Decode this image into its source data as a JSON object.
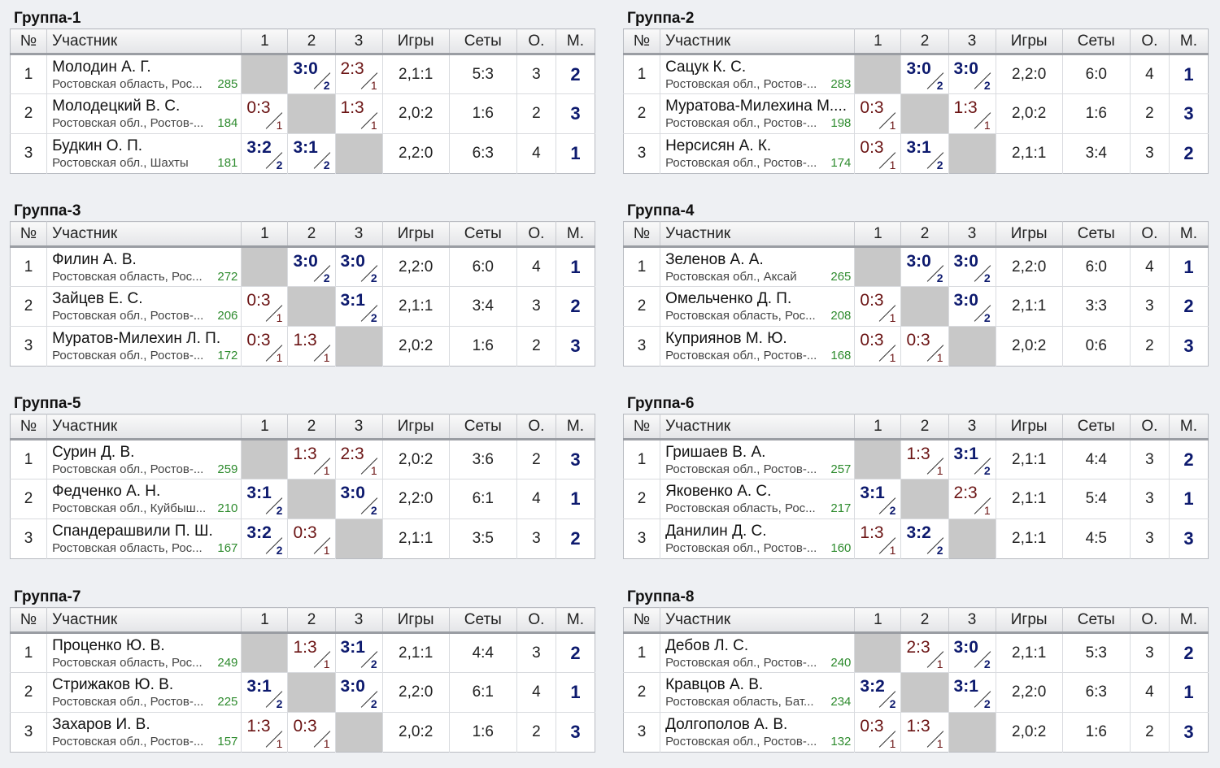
{
  "columns": {
    "num": "№",
    "name": "Участник",
    "c1": "1",
    "c2": "2",
    "c3": "3",
    "games": "Игры",
    "sets": "Сеты",
    "points": "О.",
    "place": "М."
  },
  "colors": {
    "win": "#0d1a6e",
    "loss": "#6b1414",
    "rating": "#2e8b2e",
    "self_cell": "#c8c8c8"
  },
  "groups": [
    {
      "title": "Группа-1",
      "rows": [
        {
          "num": "1",
          "name": "Молодин А. Г.",
          "region": "Ростовская область, Рос...",
          "rating": "285",
          "results": [
            null,
            {
              "score": "3:0",
              "pts": "2",
              "win": true
            },
            {
              "score": "2:3",
              "pts": "1",
              "win": false
            }
          ],
          "games": "2,1:1",
          "sets": "5:3",
          "points": "3",
          "place": "2"
        },
        {
          "num": "2",
          "name": "Молодецкий В. С.",
          "region": "Ростовская обл., Ростов-...",
          "rating": "184",
          "results": [
            {
              "score": "0:3",
              "pts": "1",
              "win": false
            },
            null,
            {
              "score": "1:3",
              "pts": "1",
              "win": false
            }
          ],
          "games": "2,0:2",
          "sets": "1:6",
          "points": "2",
          "place": "3"
        },
        {
          "num": "3",
          "name": "Будкин О. П.",
          "region": "Ростовская обл., Шахты",
          "rating": "181",
          "results": [
            {
              "score": "3:2",
              "pts": "2",
              "win": true
            },
            {
              "score": "3:1",
              "pts": "2",
              "win": true
            },
            null
          ],
          "games": "2,2:0",
          "sets": "6:3",
          "points": "4",
          "place": "1"
        }
      ]
    },
    {
      "title": "Группа-2",
      "rows": [
        {
          "num": "1",
          "name": "Сацук К. С.",
          "region": "Ростовская обл., Ростов-...",
          "rating": "283",
          "results": [
            null,
            {
              "score": "3:0",
              "pts": "2",
              "win": true
            },
            {
              "score": "3:0",
              "pts": "2",
              "win": true
            }
          ],
          "games": "2,2:0",
          "sets": "6:0",
          "points": "4",
          "place": "1"
        },
        {
          "num": "2",
          "name": "Муратова-Милехина М....",
          "region": "Ростовская обл., Ростов-...",
          "rating": "198",
          "results": [
            {
              "score": "0:3",
              "pts": "1",
              "win": false
            },
            null,
            {
              "score": "1:3",
              "pts": "1",
              "win": false
            }
          ],
          "games": "2,0:2",
          "sets": "1:6",
          "points": "2",
          "place": "3"
        },
        {
          "num": "3",
          "name": "Нерсисян А. К.",
          "region": "Ростовская обл., Ростов-...",
          "rating": "174",
          "results": [
            {
              "score": "0:3",
              "pts": "1",
              "win": false
            },
            {
              "score": "3:1",
              "pts": "2",
              "win": true
            },
            null
          ],
          "games": "2,1:1",
          "sets": "3:4",
          "points": "3",
          "place": "2"
        }
      ]
    },
    {
      "title": "Группа-3",
      "rows": [
        {
          "num": "1",
          "name": "Филин А. В.",
          "region": "Ростовская область, Рос...",
          "rating": "272",
          "results": [
            null,
            {
              "score": "3:0",
              "pts": "2",
              "win": true
            },
            {
              "score": "3:0",
              "pts": "2",
              "win": true
            }
          ],
          "games": "2,2:0",
          "sets": "6:0",
          "points": "4",
          "place": "1"
        },
        {
          "num": "2",
          "name": "Зайцев Е. С.",
          "region": "Ростовская обл., Ростов-...",
          "rating": "206",
          "results": [
            {
              "score": "0:3",
              "pts": "1",
              "win": false
            },
            null,
            {
              "score": "3:1",
              "pts": "2",
              "win": true
            }
          ],
          "games": "2,1:1",
          "sets": "3:4",
          "points": "3",
          "place": "2"
        },
        {
          "num": "3",
          "name": "Муратов-Милехин Л. П.",
          "region": "Ростовская обл., Ростов-...",
          "rating": "172",
          "results": [
            {
              "score": "0:3",
              "pts": "1",
              "win": false
            },
            {
              "score": "1:3",
              "pts": "1",
              "win": false
            },
            null
          ],
          "games": "2,0:2",
          "sets": "1:6",
          "points": "2",
          "place": "3"
        }
      ]
    },
    {
      "title": "Группа-4",
      "rows": [
        {
          "num": "1",
          "name": "Зеленов А. А.",
          "region": "Ростовская обл., Аксай",
          "rating": "265",
          "results": [
            null,
            {
              "score": "3:0",
              "pts": "2",
              "win": true
            },
            {
              "score": "3:0",
              "pts": "2",
              "win": true
            }
          ],
          "games": "2,2:0",
          "sets": "6:0",
          "points": "4",
          "place": "1"
        },
        {
          "num": "2",
          "name": "Омельченко Д. П.",
          "region": "Ростовская область, Рос...",
          "rating": "208",
          "results": [
            {
              "score": "0:3",
              "pts": "1",
              "win": false
            },
            null,
            {
              "score": "3:0",
              "pts": "2",
              "win": true
            }
          ],
          "games": "2,1:1",
          "sets": "3:3",
          "points": "3",
          "place": "2"
        },
        {
          "num": "3",
          "name": "Куприянов М. Ю.",
          "region": "Ростовская обл., Ростов-...",
          "rating": "168",
          "results": [
            {
              "score": "0:3",
              "pts": "1",
              "win": false
            },
            {
              "score": "0:3",
              "pts": "1",
              "win": false
            },
            null
          ],
          "games": "2,0:2",
          "sets": "0:6",
          "points": "2",
          "place": "3"
        }
      ]
    },
    {
      "title": "Группа-5",
      "rows": [
        {
          "num": "1",
          "name": "Сурин Д. В.",
          "region": "Ростовская обл., Ростов-...",
          "rating": "259",
          "results": [
            null,
            {
              "score": "1:3",
              "pts": "1",
              "win": false
            },
            {
              "score": "2:3",
              "pts": "1",
              "win": false
            }
          ],
          "games": "2,0:2",
          "sets": "3:6",
          "points": "2",
          "place": "3"
        },
        {
          "num": "2",
          "name": "Федченко А. Н.",
          "region": "Ростовская обл., Куйбыш...",
          "rating": "210",
          "results": [
            {
              "score": "3:1",
              "pts": "2",
              "win": true
            },
            null,
            {
              "score": "3:0",
              "pts": "2",
              "win": true
            }
          ],
          "games": "2,2:0",
          "sets": "6:1",
          "points": "4",
          "place": "1"
        },
        {
          "num": "3",
          "name": "Спандерашвили П. Ш.",
          "region": "Ростовская область, Рос...",
          "rating": "167",
          "results": [
            {
              "score": "3:2",
              "pts": "2",
              "win": true
            },
            {
              "score": "0:3",
              "pts": "1",
              "win": false
            },
            null
          ],
          "games": "2,1:1",
          "sets": "3:5",
          "points": "3",
          "place": "2"
        }
      ]
    },
    {
      "title": "Группа-6",
      "rows": [
        {
          "num": "1",
          "name": "Гришаев В. А.",
          "region": "Ростовская обл., Ростов-...",
          "rating": "257",
          "results": [
            null,
            {
              "score": "1:3",
              "pts": "1",
              "win": false
            },
            {
              "score": "3:1",
              "pts": "2",
              "win": true
            }
          ],
          "games": "2,1:1",
          "sets": "4:4",
          "points": "3",
          "place": "2"
        },
        {
          "num": "2",
          "name": "Яковенко А. С.",
          "region": "Ростовская область, Рос...",
          "rating": "217",
          "results": [
            {
              "score": "3:1",
              "pts": "2",
              "win": true
            },
            null,
            {
              "score": "2:3",
              "pts": "1",
              "win": false
            }
          ],
          "games": "2,1:1",
          "sets": "5:4",
          "points": "3",
          "place": "1"
        },
        {
          "num": "3",
          "name": "Данилин Д. С.",
          "region": "Ростовская обл., Ростов-...",
          "rating": "160",
          "results": [
            {
              "score": "1:3",
              "pts": "1",
              "win": false
            },
            {
              "score": "3:2",
              "pts": "2",
              "win": true
            },
            null
          ],
          "games": "2,1:1",
          "sets": "4:5",
          "points": "3",
          "place": "3"
        }
      ]
    },
    {
      "title": "Группа-7",
      "rows": [
        {
          "num": "1",
          "name": "Проценко Ю. В.",
          "region": "Ростовская область, Рос...",
          "rating": "249",
          "results": [
            null,
            {
              "score": "1:3",
              "pts": "1",
              "win": false
            },
            {
              "score": "3:1",
              "pts": "2",
              "win": true
            }
          ],
          "games": "2,1:1",
          "sets": "4:4",
          "points": "3",
          "place": "2"
        },
        {
          "num": "2",
          "name": "Стрижаков Ю. В.",
          "region": "Ростовская обл., Ростов-...",
          "rating": "225",
          "results": [
            {
              "score": "3:1",
              "pts": "2",
              "win": true
            },
            null,
            {
              "score": "3:0",
              "pts": "2",
              "win": true
            }
          ],
          "games": "2,2:0",
          "sets": "6:1",
          "points": "4",
          "place": "1"
        },
        {
          "num": "3",
          "name": "Захаров И. В.",
          "region": "Ростовская обл., Ростов-...",
          "rating": "157",
          "results": [
            {
              "score": "1:3",
              "pts": "1",
              "win": false
            },
            {
              "score": "0:3",
              "pts": "1",
              "win": false
            },
            null
          ],
          "games": "2,0:2",
          "sets": "1:6",
          "points": "2",
          "place": "3"
        }
      ]
    },
    {
      "title": "Группа-8",
      "rows": [
        {
          "num": "1",
          "name": "Дебов Л. С.",
          "region": "Ростовская обл., Ростов-...",
          "rating": "240",
          "results": [
            null,
            {
              "score": "2:3",
              "pts": "1",
              "win": false
            },
            {
              "score": "3:0",
              "pts": "2",
              "win": true
            }
          ],
          "games": "2,1:1",
          "sets": "5:3",
          "points": "3",
          "place": "2"
        },
        {
          "num": "2",
          "name": "Кравцов А. В.",
          "region": "Ростовская область, Бат...",
          "rating": "234",
          "results": [
            {
              "score": "3:2",
              "pts": "2",
              "win": true
            },
            null,
            {
              "score": "3:1",
              "pts": "2",
              "win": true
            }
          ],
          "games": "2,2:0",
          "sets": "6:3",
          "points": "4",
          "place": "1"
        },
        {
          "num": "3",
          "name": "Долгополов А. В.",
          "region": "Ростовская обл., Ростов-...",
          "rating": "132",
          "results": [
            {
              "score": "0:3",
              "pts": "1",
              "win": false
            },
            {
              "score": "1:3",
              "pts": "1",
              "win": false
            },
            null
          ],
          "games": "2,0:2",
          "sets": "1:6",
          "points": "2",
          "place": "3"
        }
      ]
    }
  ]
}
